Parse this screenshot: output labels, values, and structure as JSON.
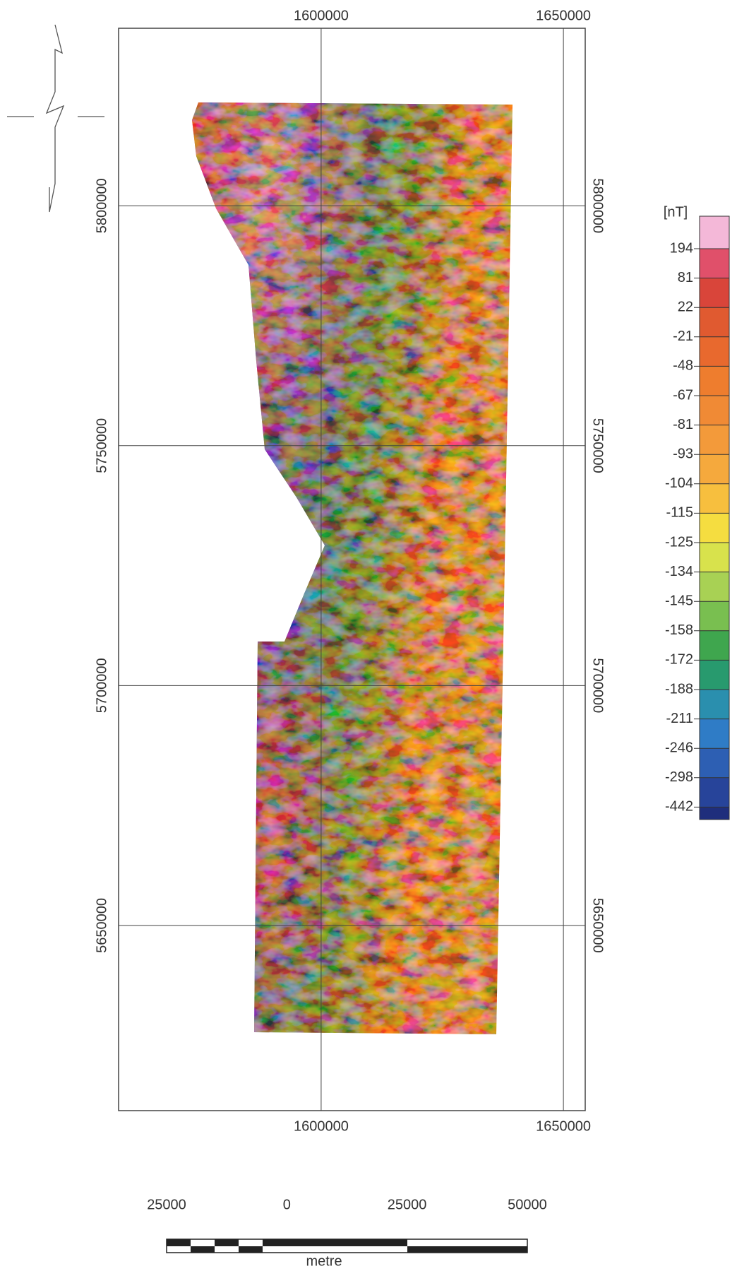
{
  "map": {
    "xlim": [
      1558200,
      1654500
    ],
    "ylim": [
      5611400,
      5837000
    ],
    "xticks": [
      1600000,
      1650000
    ],
    "yticks": [
      5650000,
      5700000,
      5750000,
      5800000
    ]
  },
  "colorbar": {
    "unit": "[nT]",
    "labels": [
      194,
      81,
      22,
      -21,
      -48,
      -67,
      -81,
      -93,
      -104,
      -115,
      -125,
      -134,
      -145,
      -158,
      -172,
      -188,
      -211,
      -246,
      -298,
      -442
    ],
    "colors": [
      "#f4b8d8",
      "#e0506a",
      "#d9453a",
      "#e05a30",
      "#e8692e",
      "#ee7d2e",
      "#f08a35",
      "#f39a3a",
      "#f5a93d",
      "#f7bf3e",
      "#f5dd40",
      "#d8e24c",
      "#a8d154",
      "#79bf50",
      "#3fa64e",
      "#289a6e",
      "#2a8fae",
      "#2f7cc6",
      "#2d5fb3",
      "#27449a",
      "#1f2e7c"
    ]
  },
  "scale_bar": {
    "labels": [
      25000,
      0,
      25000,
      50000
    ],
    "unit": "metre"
  }
}
